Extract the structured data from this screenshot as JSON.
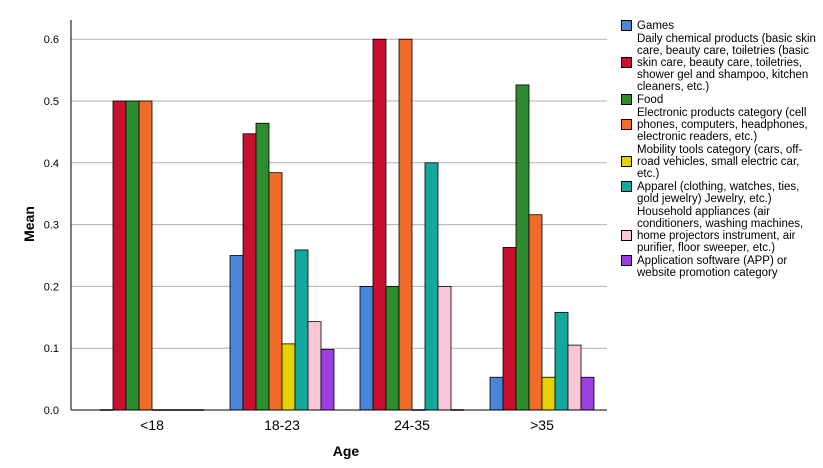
{
  "chart_data": {
    "type": "bar",
    "xlabel": "Age",
    "ylabel": "Mean",
    "ylim": [
      0,
      0.63
    ],
    "yticks": [
      "0.0",
      "0.1",
      "0.2",
      "0.3",
      "0.4",
      "0.5",
      "0.6"
    ],
    "grid": true,
    "legend_position": "right",
    "categories": [
      "<18",
      "18-23",
      "24-35",
      ">35"
    ],
    "series": [
      {
        "name": "Games",
        "color": "#4a86d8",
        "values": [
          0,
          0.25,
          0.2,
          0.053
        ]
      },
      {
        "name": "Daily chemical products (basic skin care, beauty care, toiletries (basic skin care, beauty care, toiletries, shower gel and shampoo, kitchen cleaners, etc.)",
        "color": "#c8102e",
        "values": [
          0.5,
          0.447,
          0.6,
          0.263
        ]
      },
      {
        "name": "Food",
        "color": "#2e8b2e",
        "values": [
          0.5,
          0.464,
          0.2,
          0.526
        ]
      },
      {
        "name": "Electronic products category (cell phones, computers, headphones, electronic readers, etc.)",
        "color": "#f26b2a",
        "values": [
          0.5,
          0.384,
          0.6,
          0.316
        ]
      },
      {
        "name": "Mobility tools category (cars, off-road vehicles, small electric car, etc.)",
        "color": "#e6d200",
        "values": [
          0,
          0.107,
          0,
          0.053
        ]
      },
      {
        "name": "Apparel (clothing, watches, ties, gold jewelry) Jewelry, etc.)",
        "color": "#13a89e",
        "values": [
          0,
          0.259,
          0.4,
          0.158
        ]
      },
      {
        "name": "Household appliances (air conditioners, washing machines, home projectors instrument, air purifier, floor sweeper, etc.)",
        "color": "#f9c6d8",
        "values": [
          0,
          0.143,
          0.2,
          0.105
        ]
      },
      {
        "name": "Application software (APP) or website promotion category",
        "color": "#9b3fe0",
        "values": [
          0,
          0.098,
          0,
          0.053
        ]
      }
    ]
  }
}
